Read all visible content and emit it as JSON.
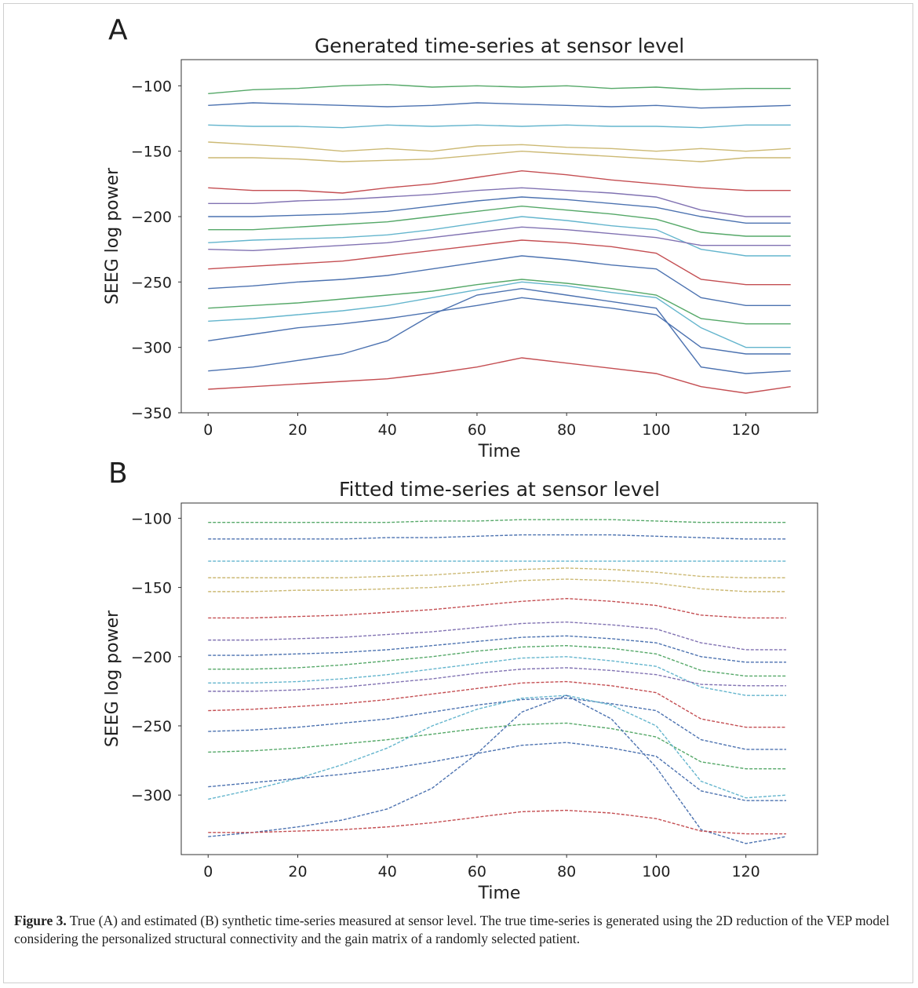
{
  "chart_data": [
    {
      "type": "line",
      "panel_label": "A",
      "title": "Generated time-series at sensor level",
      "xlabel": "Time",
      "ylabel": "SEEG log power",
      "line_style": "solid",
      "x": [
        0,
        10,
        20,
        30,
        40,
        50,
        60,
        70,
        80,
        90,
        100,
        110,
        120,
        130
      ],
      "xlim": [
        -6,
        136
      ],
      "xticks": [
        0,
        20,
        40,
        60,
        80,
        100,
        120
      ],
      "ylim": [
        -350,
        -80
      ],
      "yticks": [
        {
          "value": -350,
          "label": "−350"
        },
        {
          "value": -300,
          "label": "−300"
        },
        {
          "value": -250,
          "label": "−250"
        },
        {
          "value": -200,
          "label": "−200"
        },
        {
          "value": -150,
          "label": "−150"
        },
        {
          "value": -100,
          "label": "−100"
        }
      ],
      "series": [
        {
          "color": "#55a868",
          "values": [
            -106,
            -103,
            -102,
            -100,
            -99,
            -101,
            -100,
            -101,
            -100,
            -102,
            -101,
            -103,
            -102,
            -102
          ]
        },
        {
          "color": "#4c72b0",
          "values": [
            -115,
            -113,
            -114,
            -115,
            -116,
            -115,
            -113,
            -114,
            -115,
            -116,
            -115,
            -117,
            -116,
            -115
          ]
        },
        {
          "color": "#64b5cd",
          "values": [
            -130,
            -131,
            -131,
            -132,
            -130,
            -131,
            -130,
            -131,
            -130,
            -131,
            -131,
            -132,
            -130,
            -130
          ]
        },
        {
          "color": "#ccb974",
          "values": [
            -143,
            -145,
            -147,
            -150,
            -148,
            -150,
            -146,
            -145,
            -147,
            -148,
            -150,
            -148,
            -150,
            -148
          ]
        },
        {
          "color": "#ccb974",
          "values": [
            -155,
            -155,
            -156,
            -158,
            -157,
            -156,
            -153,
            -150,
            -152,
            -154,
            -156,
            -158,
            -155,
            -155
          ]
        },
        {
          "color": "#c44e52",
          "values": [
            -178,
            -180,
            -180,
            -182,
            -178,
            -175,
            -170,
            -165,
            -168,
            -172,
            -175,
            -178,
            -180,
            -180
          ]
        },
        {
          "color": "#8172b2",
          "values": [
            -190,
            -190,
            -188,
            -187,
            -185,
            -183,
            -180,
            -178,
            -180,
            -182,
            -185,
            -195,
            -200,
            -200
          ]
        },
        {
          "color": "#4c72b0",
          "values": [
            -200,
            -200,
            -199,
            -198,
            -196,
            -192,
            -188,
            -185,
            -187,
            -190,
            -193,
            -200,
            -205,
            -205
          ]
        },
        {
          "color": "#55a868",
          "values": [
            -210,
            -210,
            -208,
            -206,
            -204,
            -200,
            -196,
            -192,
            -195,
            -198,
            -202,
            -212,
            -215,
            -215
          ]
        },
        {
          "color": "#64b5cd",
          "values": [
            -220,
            -218,
            -217,
            -216,
            -214,
            -210,
            -205,
            -200,
            -203,
            -207,
            -210,
            -225,
            -230,
            -230
          ]
        },
        {
          "color": "#8172b2",
          "values": [
            -225,
            -226,
            -224,
            -222,
            -220,
            -216,
            -212,
            -208,
            -210,
            -213,
            -216,
            -222,
            -222,
            -222
          ]
        },
        {
          "color": "#c44e52",
          "values": [
            -240,
            -238,
            -236,
            -234,
            -230,
            -226,
            -222,
            -218,
            -220,
            -223,
            -228,
            -248,
            -252,
            -252
          ]
        },
        {
          "color": "#4c72b0",
          "values": [
            -255,
            -253,
            -250,
            -248,
            -245,
            -240,
            -235,
            -230,
            -233,
            -237,
            -240,
            -262,
            -268,
            -268
          ]
        },
        {
          "color": "#55a868",
          "values": [
            -270,
            -268,
            -266,
            -263,
            -260,
            -257,
            -252,
            -248,
            -251,
            -255,
            -260,
            -278,
            -282,
            -282
          ]
        },
        {
          "color": "#64b5cd",
          "values": [
            -280,
            -278,
            -275,
            -272,
            -268,
            -262,
            -256,
            -250,
            -253,
            -258,
            -262,
            -285,
            -300,
            -300
          ]
        },
        {
          "color": "#4c72b0",
          "values": [
            -295,
            -290,
            -285,
            -282,
            -278,
            -273,
            -268,
            -262,
            -266,
            -270,
            -275,
            -300,
            -305,
            -305
          ]
        },
        {
          "color": "#4c72b0",
          "values": [
            -318,
            -315,
            -310,
            -305,
            -295,
            -275,
            -260,
            -255,
            -260,
            -265,
            -270,
            -315,
            -320,
            -318
          ]
        },
        {
          "color": "#c44e52",
          "values": [
            -332,
            -330,
            -328,
            -326,
            -324,
            -320,
            -315,
            -308,
            -312,
            -316,
            -320,
            -330,
            -335,
            -330
          ]
        }
      ]
    },
    {
      "type": "line",
      "panel_label": "B",
      "title": "Fitted time-series at sensor level",
      "xlabel": "Time",
      "ylabel": "SEEG log power",
      "line_style": "dashed",
      "x": [
        0,
        10,
        20,
        30,
        40,
        50,
        60,
        70,
        80,
        90,
        100,
        110,
        120,
        129
      ],
      "xlim": [
        -6,
        136
      ],
      "xticks": [
        0,
        20,
        40,
        60,
        80,
        100,
        120
      ],
      "ylim": [
        -343,
        -89
      ],
      "yticks": [
        {
          "value": -300,
          "label": "−300"
        },
        {
          "value": -250,
          "label": "−250"
        },
        {
          "value": -200,
          "label": "−200"
        },
        {
          "value": -150,
          "label": "−150"
        },
        {
          "value": -100,
          "label": "−100"
        }
      ],
      "series": [
        {
          "color": "#55a868",
          "values": [
            -103,
            -103,
            -103,
            -103,
            -103,
            -102,
            -102,
            -101,
            -101,
            -101,
            -102,
            -103,
            -103,
            -103
          ]
        },
        {
          "color": "#4c72b0",
          "values": [
            -115,
            -115,
            -115,
            -115,
            -114,
            -114,
            -113,
            -112,
            -112,
            -112,
            -113,
            -114,
            -115,
            -115
          ]
        },
        {
          "color": "#64b5cd",
          "values": [
            -131,
            -131,
            -131,
            -131,
            -131,
            -131,
            -131,
            -131,
            -131,
            -131,
            -131,
            -131,
            -131,
            -131
          ]
        },
        {
          "color": "#ccb974",
          "values": [
            -143,
            -143,
            -143,
            -143,
            -142,
            -141,
            -139,
            -137,
            -136,
            -137,
            -139,
            -142,
            -143,
            -143
          ]
        },
        {
          "color": "#ccb974",
          "values": [
            -153,
            -153,
            -152,
            -152,
            -151,
            -150,
            -148,
            -145,
            -144,
            -145,
            -147,
            -151,
            -153,
            -153
          ]
        },
        {
          "color": "#c44e52",
          "values": [
            -172,
            -172,
            -171,
            -170,
            -168,
            -166,
            -163,
            -160,
            -158,
            -160,
            -163,
            -170,
            -172,
            -172
          ]
        },
        {
          "color": "#8172b2",
          "values": [
            -188,
            -188,
            -187,
            -186,
            -184,
            -182,
            -179,
            -176,
            -175,
            -177,
            -180,
            -190,
            -195,
            -195
          ]
        },
        {
          "color": "#4c72b0",
          "values": [
            -199,
            -199,
            -198,
            -197,
            -195,
            -192,
            -189,
            -186,
            -185,
            -187,
            -190,
            -200,
            -204,
            -204
          ]
        },
        {
          "color": "#55a868",
          "values": [
            -209,
            -209,
            -208,
            -206,
            -203,
            -200,
            -196,
            -193,
            -192,
            -194,
            -198,
            -210,
            -214,
            -214
          ]
        },
        {
          "color": "#64b5cd",
          "values": [
            -219,
            -219,
            -218,
            -216,
            -213,
            -209,
            -205,
            -201,
            -200,
            -203,
            -207,
            -222,
            -228,
            -228
          ]
        },
        {
          "color": "#8172b2",
          "values": [
            -225,
            -225,
            -224,
            -222,
            -219,
            -216,
            -212,
            -209,
            -208,
            -210,
            -213,
            -220,
            -221,
            -221
          ]
        },
        {
          "color": "#c44e52",
          "values": [
            -239,
            -238,
            -236,
            -234,
            -231,
            -227,
            -223,
            -219,
            -218,
            -221,
            -226,
            -245,
            -251,
            -251
          ]
        },
        {
          "color": "#4c72b0",
          "values": [
            -254,
            -253,
            -251,
            -248,
            -245,
            -240,
            -235,
            -231,
            -230,
            -234,
            -239,
            -260,
            -267,
            -267
          ]
        },
        {
          "color": "#55a868",
          "values": [
            -269,
            -268,
            -266,
            -263,
            -260,
            -256,
            -252,
            -249,
            -248,
            -252,
            -258,
            -276,
            -281,
            -281
          ]
        },
        {
          "color": "#64b5cd",
          "values": [
            -303,
            -296,
            -288,
            -278,
            -266,
            -250,
            -238,
            -230,
            -228,
            -235,
            -250,
            -290,
            -302,
            -300
          ]
        },
        {
          "color": "#4c72b0",
          "values": [
            -294,
            -291,
            -288,
            -285,
            -281,
            -276,
            -270,
            -264,
            -262,
            -266,
            -272,
            -297,
            -304,
            -304
          ]
        },
        {
          "color": "#4c72b0",
          "values": [
            -330,
            -327,
            -323,
            -318,
            -310,
            -295,
            -270,
            -240,
            -228,
            -245,
            -280,
            -325,
            -335,
            -330
          ]
        },
        {
          "color": "#c44e52",
          "values": [
            -327,
            -327,
            -326,
            -325,
            -323,
            -320,
            -316,
            -312,
            -311,
            -313,
            -317,
            -326,
            -328,
            -328
          ]
        }
      ]
    }
  ],
  "caption": {
    "label": "Figure 3.",
    "text": "True (A) and estimated (B) synthetic time-series measured at sensor level. The true time-series is generated using the 2D reduction of the VEP model considering the personalized structural connectivity and the gain matrix of a randomly selected patient."
  }
}
